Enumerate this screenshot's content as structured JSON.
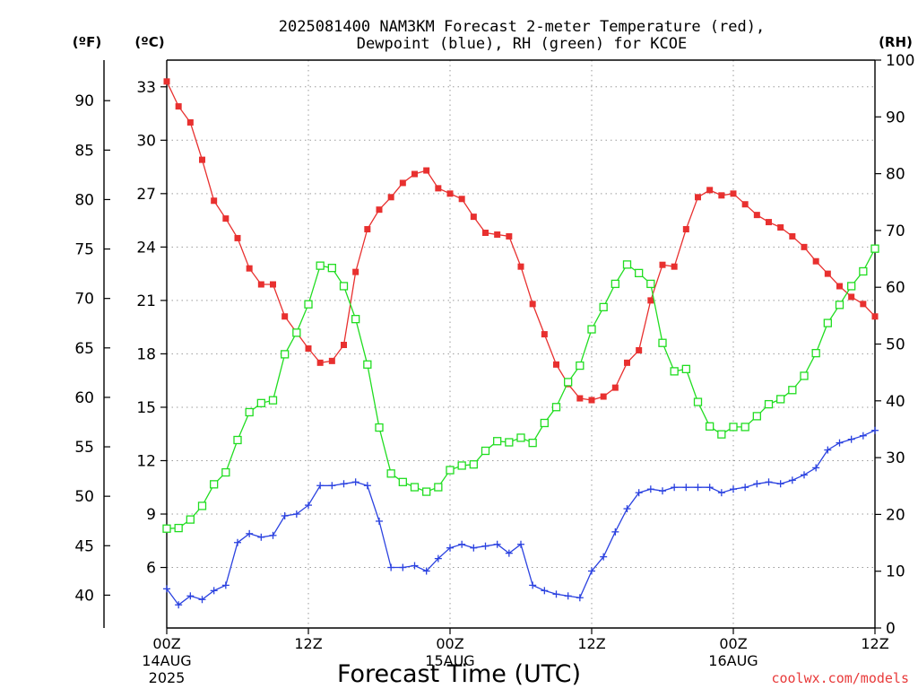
{
  "chart_data": {
    "type": "line",
    "title_line1": "2025081400 NAM3KM Forecast 2-meter Temperature (red),",
    "title_line2": "Dewpoint (blue), RH (green) for KCOE",
    "xlabel": "Forecast Time (UTC)",
    "unit_f": "(ºF)",
    "unit_c": "(ºC)",
    "unit_rh": "(RH)",
    "credit": "coolwx.com/models",
    "x_hours_range": [
      0,
      60
    ],
    "celsius_range": [
      2.6,
      34.5
    ],
    "rh_range": [
      0,
      100
    ],
    "grid": true,
    "x_ticks": [
      {
        "hour": 0,
        "label": "00Z",
        "line2": "14AUG",
        "line3": "2025"
      },
      {
        "hour": 12,
        "label": "12Z",
        "line2": "",
        "line3": ""
      },
      {
        "hour": 24,
        "label": "00Z",
        "line2": "15AUG",
        "line3": ""
      },
      {
        "hour": 36,
        "label": "12Z",
        "line2": "",
        "line3": ""
      },
      {
        "hour": 48,
        "label": "00Z",
        "line2": "16AUG",
        "line3": ""
      },
      {
        "hour": 60,
        "label": "12Z",
        "line2": "",
        "line3": ""
      }
    ],
    "c_ticks": [
      6,
      9,
      12,
      15,
      18,
      21,
      24,
      27,
      30,
      33
    ],
    "f_ticks": [
      40,
      45,
      50,
      55,
      60,
      65,
      70,
      75,
      80,
      85,
      90
    ],
    "rh_ticks": [
      0,
      10,
      20,
      30,
      40,
      50,
      60,
      70,
      80,
      90,
      100
    ],
    "series": [
      {
        "name": "Temperature",
        "color": "#e8302f",
        "marker": "filled-square",
        "axis": "celsius",
        "hours": [
          0,
          1,
          2,
          3,
          4,
          5,
          6,
          7,
          8,
          9,
          10,
          11,
          12,
          13,
          14,
          15,
          16,
          17,
          18,
          19,
          20,
          21,
          22,
          23,
          24,
          25,
          26,
          27,
          28,
          29,
          30,
          31,
          32,
          33,
          34,
          35,
          36,
          37,
          38,
          39,
          40,
          41,
          42,
          43,
          44,
          45,
          46,
          47,
          48,
          49,
          50,
          51,
          52,
          53,
          54,
          55,
          56,
          57,
          58,
          59,
          60
        ],
        "values": [
          33.3,
          31.9,
          31.0,
          28.9,
          26.6,
          25.6,
          24.5,
          22.8,
          21.9,
          21.9,
          20.1,
          19.2,
          18.3,
          17.5,
          17.6,
          18.5,
          22.6,
          25.0,
          26.1,
          26.8,
          27.6,
          28.1,
          28.3,
          27.3,
          27.0,
          26.7,
          25.7,
          24.8,
          24.7,
          24.6,
          22.9,
          20.8,
          19.1,
          17.4,
          16.3,
          15.5,
          15.4,
          15.6,
          16.1,
          17.5,
          18.2,
          21.0,
          23.0,
          22.9,
          25.0,
          26.8,
          27.2,
          26.9,
          27.0,
          26.4,
          25.8,
          25.4,
          25.1,
          24.6,
          24.0,
          23.2,
          22.5,
          21.8,
          21.2,
          20.8,
          20.1
        ]
      },
      {
        "name": "Dewpoint",
        "color": "#2b42e0",
        "marker": "plus",
        "axis": "celsius",
        "hours": [
          0,
          1,
          2,
          3,
          4,
          5,
          6,
          7,
          8,
          9,
          10,
          11,
          12,
          13,
          14,
          15,
          16,
          17,
          18,
          19,
          20,
          21,
          22,
          23,
          24,
          25,
          26,
          27,
          28,
          29,
          30,
          31,
          32,
          33,
          34,
          35,
          36,
          37,
          38,
          39,
          40,
          41,
          42,
          43,
          44,
          45,
          46,
          47,
          48,
          49,
          50,
          51,
          52,
          53,
          54,
          55,
          56,
          57,
          58,
          59,
          60
        ],
        "values": [
          4.8,
          3.9,
          4.4,
          4.2,
          4.7,
          5.0,
          7.4,
          7.9,
          7.7,
          7.8,
          8.9,
          9.0,
          9.5,
          10.6,
          10.6,
          10.7,
          10.8,
          10.6,
          8.6,
          6.0,
          6.0,
          6.1,
          5.8,
          6.5,
          7.1,
          7.3,
          7.1,
          7.2,
          7.3,
          6.8,
          7.3,
          5.0,
          4.7,
          4.5,
          4.4,
          4.3,
          5.8,
          6.6,
          8.0,
          9.3,
          10.2,
          10.4,
          10.3,
          10.5,
          10.5,
          10.5,
          10.5,
          10.2,
          10.4,
          10.5,
          10.7,
          10.8,
          10.7,
          10.9,
          11.2,
          11.6,
          12.6,
          13.0,
          13.2,
          13.4,
          13.7
        ]
      },
      {
        "name": "RH",
        "color": "#21dd21",
        "marker": "open-square",
        "axis": "rh",
        "hours": [
          0,
          1,
          2,
          3,
          4,
          5,
          6,
          7,
          8,
          9,
          10,
          11,
          12,
          13,
          14,
          15,
          16,
          17,
          18,
          19,
          20,
          21,
          22,
          23,
          24,
          25,
          26,
          27,
          28,
          29,
          30,
          31,
          32,
          33,
          34,
          35,
          36,
          37,
          38,
          39,
          40,
          41,
          42,
          43,
          44,
          45,
          46,
          47,
          48,
          49,
          50,
          51,
          52,
          53,
          54,
          55,
          56,
          57,
          58,
          59,
          60
        ],
        "values": [
          17.5,
          17.6,
          19.1,
          21.5,
          25.3,
          27.4,
          33.1,
          38.0,
          39.6,
          40.1,
          48.2,
          52.0,
          57.0,
          63.8,
          63.4,
          60.2,
          54.4,
          46.4,
          35.3,
          27.2,
          25.7,
          24.8,
          24.0,
          24.8,
          27.8,
          28.6,
          28.8,
          31.2,
          32.9,
          32.7,
          33.5,
          32.6,
          36.1,
          38.9,
          43.3,
          46.2,
          52.6,
          56.5,
          60.6,
          64.0,
          62.5,
          60.6,
          50.2,
          45.2,
          45.6,
          39.8,
          35.5,
          34.1,
          35.4,
          35.4,
          37.3,
          39.4,
          40.3,
          41.9,
          44.4,
          48.4,
          53.7,
          56.9,
          60.2,
          62.8,
          66.8
        ]
      }
    ]
  }
}
